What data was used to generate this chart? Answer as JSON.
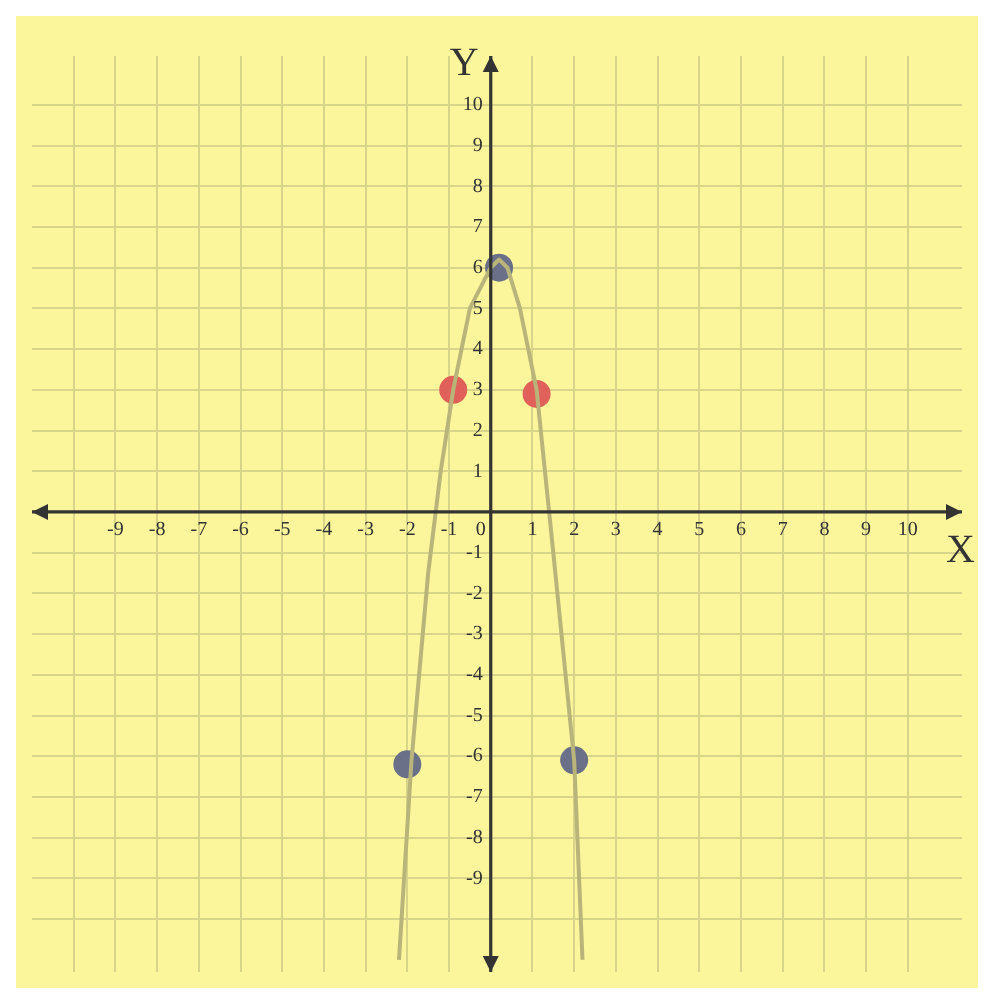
{
  "chart_data": {
    "type": "line",
    "xlabel": "X",
    "ylabel": "Y",
    "xlim": [
      -11,
      11.3
    ],
    "ylim": [
      -11.3,
      11.2
    ],
    "xticks": [
      {
        "value": -10,
        "label": null
      },
      -9,
      -8,
      -7,
      -6,
      -5,
      -4,
      -3,
      -2,
      -1,
      0,
      1,
      2,
      3,
      4,
      5,
      6,
      7,
      8,
      9,
      10
    ],
    "yticks": [
      {
        "value": -10,
        "label": null
      },
      -9,
      -8,
      -7,
      -6,
      -5,
      -4,
      -3,
      -2,
      -1,
      {
        "value": 0,
        "label": null
      },
      1,
      2,
      3,
      4,
      5,
      6,
      7,
      8,
      9,
      10
    ],
    "grid": true,
    "legend": false,
    "series": [
      {
        "type": "line",
        "color": "#b8b47a",
        "marker": "none",
        "x": [
          -2.2,
          -1.9,
          -1.5,
          -1.2,
          -0.9,
          -0.5,
          0,
          0.2,
          0.4,
          0.7,
          1.1,
          1.5,
          2,
          2.2
        ],
        "values": [
          -11,
          -6.1,
          -1.5,
          1,
          3,
          5,
          6,
          6.2,
          6,
          5,
          3,
          -1,
          -6.1,
          -11
        ]
      },
      {
        "type": "scatter",
        "color": "#e0605a",
        "marker": "circle",
        "x": [
          -0.9,
          1.1
        ],
        "values": [
          3,
          2.9
        ]
      },
      {
        "type": "scatter",
        "color": "#6a7088",
        "marker": "circle",
        "x": [
          0.2,
          -2,
          2
        ],
        "values": [
          6,
          -6.2,
          -6.1
        ]
      }
    ]
  }
}
